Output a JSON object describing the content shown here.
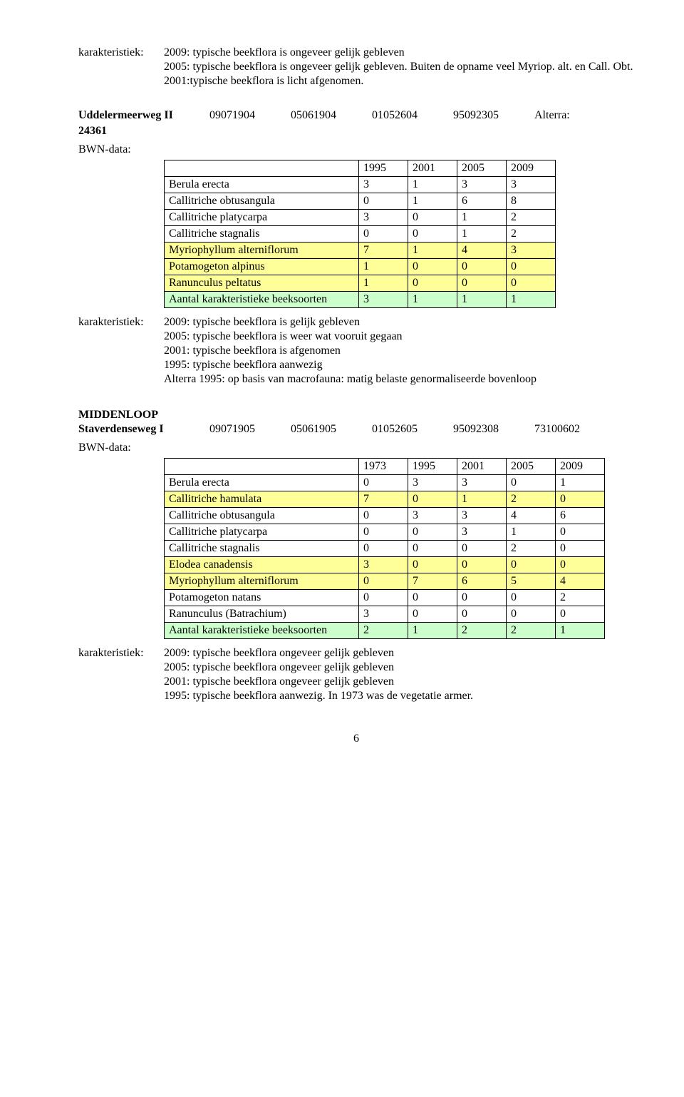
{
  "top": {
    "label": "karakteristiek:",
    "lines": [
      "2009: typische beekflora is ongeveer gelijk gebleven",
      "2005: typische beekflora is ongeveer gelijk gebleven. Buiten de opname veel Myriop. alt. en Call. Obt.",
      "2001:typische beekflora is licht afgenomen."
    ]
  },
  "sec1": {
    "name": "Uddelermeerweg II",
    "sub": "24361",
    "codes": [
      "09071904",
      "05061904",
      "01052604",
      "95092305",
      "Alterra:"
    ],
    "bwn": "BWN-data:",
    "years": [
      "1995",
      "2001",
      "2005",
      "2009"
    ],
    "rows": [
      {
        "label": "Berula erecta",
        "vals": [
          "3",
          "1",
          "3",
          "3"
        ],
        "hl": ""
      },
      {
        "label": "Callitriche obtusangula",
        "vals": [
          "0",
          "1",
          "6",
          "8"
        ],
        "hl": ""
      },
      {
        "label": "Callitriche platycarpa",
        "vals": [
          "3",
          "0",
          "1",
          "2"
        ],
        "hl": ""
      },
      {
        "label": "Callitriche stagnalis",
        "vals": [
          "0",
          "0",
          "1",
          "2"
        ],
        "hl": ""
      },
      {
        "label": "Myriophyllum alterniflorum",
        "vals": [
          "7",
          "1",
          "4",
          "3"
        ],
        "hl": "y"
      },
      {
        "label": "Potamogeton alpinus",
        "vals": [
          "1",
          "0",
          "0",
          "0"
        ],
        "hl": "y"
      },
      {
        "label": "Ranunculus peltatus",
        "vals": [
          "1",
          "0",
          "0",
          "0"
        ],
        "hl": "y"
      },
      {
        "label": "Aantal karakteristieke beeksoorten",
        "vals": [
          "3",
          "1",
          "1",
          "1"
        ],
        "hl": "g"
      }
    ],
    "char_label": "karakteristiek:",
    "char_lines": [
      "2009: typische beekflora is gelijk gebleven",
      "2005: typische beekflora is weer wat vooruit gegaan",
      "2001: typische beekflora is afgenomen",
      "1995: typische beekflora aanwezig",
      "Alterra 1995: op basis van macrofauna: matig belaste genormaliseerde bovenloop"
    ]
  },
  "midden": "MIDDENLOOP",
  "sec2": {
    "name": "Staverdenseweg I",
    "codes": [
      "09071905",
      "05061905",
      "01052605",
      "95092308",
      "73100602"
    ],
    "bwn": "BWN-data:",
    "years": [
      "1973",
      "1995",
      "2001",
      "2005",
      "2009"
    ],
    "rows": [
      {
        "label": "Berula erecta",
        "vals": [
          "0",
          "3",
          "3",
          "0",
          "1"
        ],
        "hl": ""
      },
      {
        "label": "Callitriche hamulata",
        "vals": [
          "7",
          "0",
          "1",
          "2",
          "0"
        ],
        "hl": "y"
      },
      {
        "label": "Callitriche obtusangula",
        "vals": [
          "0",
          "3",
          "3",
          "4",
          "6"
        ],
        "hl": ""
      },
      {
        "label": "Callitriche platycarpa",
        "vals": [
          "0",
          "0",
          "3",
          "1",
          "0"
        ],
        "hl": ""
      },
      {
        "label": "Callitriche stagnalis",
        "vals": [
          "0",
          "0",
          "0",
          "2",
          "0"
        ],
        "hl": ""
      },
      {
        "label": "Elodea canadensis",
        "vals": [
          "3",
          "0",
          "0",
          "0",
          "0"
        ],
        "hl": "y"
      },
      {
        "label": "Myriophyllum alterniflorum",
        "vals": [
          "0",
          "7",
          "6",
          "5",
          "4"
        ],
        "hl": "y"
      },
      {
        "label": "Potamogeton natans",
        "vals": [
          "0",
          "0",
          "0",
          "0",
          "2"
        ],
        "hl": ""
      },
      {
        "label": "Ranunculus (Batrachium)",
        "vals": [
          "3",
          "0",
          "0",
          "0",
          "0"
        ],
        "hl": ""
      },
      {
        "label": "Aantal karakteristieke beeksoorten",
        "vals": [
          "2",
          "1",
          "2",
          "2",
          "1"
        ],
        "hl": "g"
      }
    ],
    "char_label": "karakteristiek:",
    "char_lines": [
      "2009: typische beekflora ongeveer gelijk gebleven",
      "2005: typische beekflora ongeveer gelijk gebleven",
      "2001: typische beekflora ongeveer gelijk gebleven",
      "1995: typische beekflora aanwezig. In 1973 was de vegetatie armer."
    ]
  },
  "pagenum": "6"
}
